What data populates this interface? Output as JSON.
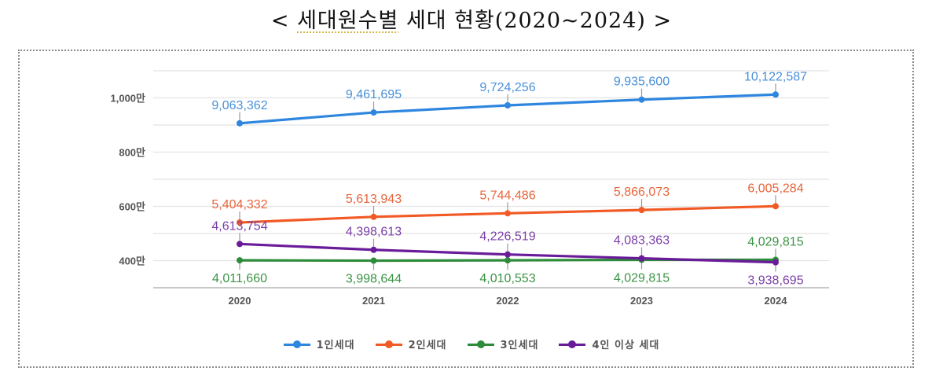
{
  "title": {
    "open": "< ",
    "highlighted": "세대원수별",
    "rest": " 세대 현황(2020~2024)",
    "close": " >"
  },
  "chart_data": {
    "type": "line",
    "title": "< 세대원수별 세대 현황(2020~2024) >",
    "xlabel": "",
    "ylabel": "",
    "categories": [
      "2020",
      "2021",
      "2022",
      "2023",
      "2024"
    ],
    "ylim": [
      3000000,
      11000000
    ],
    "yticks": [
      {
        "value": 4000000,
        "label": "400만"
      },
      {
        "value": 6000000,
        "label": "600만"
      },
      {
        "value": 8000000,
        "label": "800만"
      },
      {
        "value": 10000000,
        "label": "1,000만"
      }
    ],
    "grid_step": 1000000,
    "grid": true,
    "legend_position": "bottom",
    "series": [
      {
        "name": "1인세대",
        "color": "#2e86de",
        "label_color": "#4a90d9",
        "values": [
          9063362,
          9461695,
          9724256,
          9935600,
          10122587
        ],
        "labels": [
          "9,063,362",
          "9,461,695",
          "9,724,256",
          "9,935,600",
          "10,122,587"
        ],
        "label_side": [
          "above",
          "above",
          "above",
          "above",
          "above"
        ]
      },
      {
        "name": "2인세대",
        "color": "#f15a24",
        "label_color": "#e8643a",
        "values": [
          5404332,
          5613943,
          5744486,
          5866073,
          6005284
        ],
        "labels": [
          "5,404,332",
          "5,613,943",
          "5,744,486",
          "5,866,073",
          "6,005,284"
        ],
        "label_side": [
          "above",
          "above",
          "above",
          "above",
          "above"
        ]
      },
      {
        "name": "3인세대",
        "color": "#2e8b3a",
        "label_color": "#3a9444",
        "values": [
          4011660,
          3998644,
          4010553,
          4029815,
          4029815
        ],
        "labels": [
          "4,011,660",
          "3,998,644",
          "4,010,553",
          "4,029,815",
          "4,029,815"
        ],
        "label_side": [
          "below",
          "below",
          "below",
          "below",
          "above"
        ]
      },
      {
        "name": "4인 이상 세대",
        "color": "#6a1b9a",
        "label_color": "#7b3fa8",
        "values": [
          4613754,
          4398613,
          4226519,
          4083363,
          3938695
        ],
        "labels": [
          "4,613,754",
          "4,398,613",
          "4,226,519",
          "4,083,363",
          "3,938,695"
        ],
        "label_side": [
          "above",
          "above",
          "above",
          "above",
          "below"
        ]
      }
    ]
  }
}
